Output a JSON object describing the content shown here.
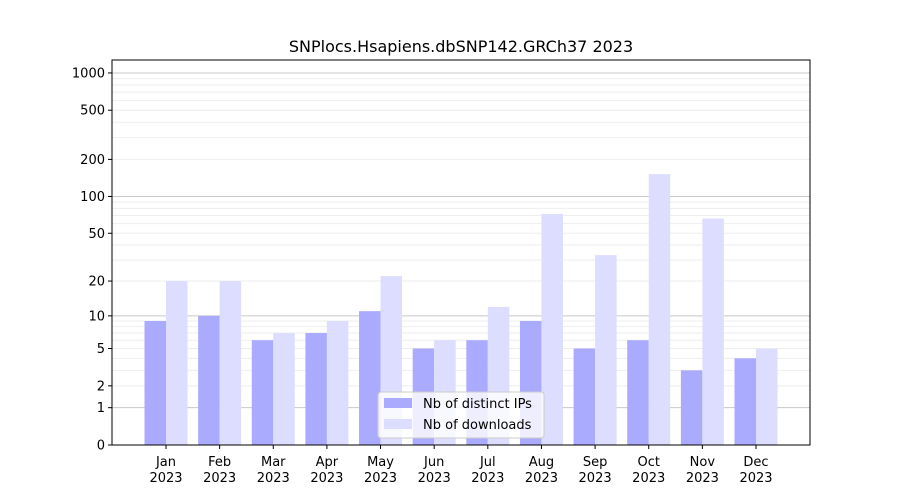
{
  "chart_data": {
    "type": "bar",
    "title": "SNPlocs.Hsapiens.dbSNP142.GRCh37 2023",
    "xlabel": "",
    "ylabel": "",
    "y_scale": "log(1+y)",
    "ylim": [
      0,
      1200
    ],
    "yticks": [
      0,
      1,
      2,
      5,
      10,
      20,
      50,
      100,
      200,
      500,
      1000
    ],
    "grid": true,
    "legend_position": "bottom-center",
    "categories": [
      "Jan\n2023",
      "Feb\n2023",
      "Mar\n2023",
      "Apr\n2023",
      "May\n2023",
      "Jun\n2023",
      "Jul\n2023",
      "Aug\n2023",
      "Sep\n2023",
      "Oct\n2023",
      "Nov\n2023",
      "Dec\n2023"
    ],
    "series": [
      {
        "name": "Nb of distinct IPs",
        "color": "#aaaaff",
        "values": [
          9,
          10,
          6,
          7,
          11,
          5,
          6,
          9,
          5,
          6,
          3,
          4
        ]
      },
      {
        "name": "Nb of downloads",
        "color": "#ddddff",
        "values": [
          20,
          20,
          7,
          9,
          22,
          6,
          12,
          72,
          33,
          152,
          66,
          5
        ]
      }
    ]
  }
}
